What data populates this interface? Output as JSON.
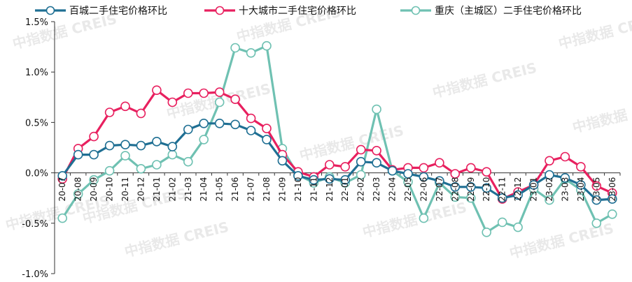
{
  "chart_data": {
    "type": "line",
    "categories": [
      "20-07",
      "20-08",
      "20-09",
      "20-10",
      "20-11",
      "20-12",
      "21-01",
      "21-02",
      "21-03",
      "21-04",
      "21-05",
      "21-06",
      "21-07",
      "21-08",
      "21-09",
      "21-10",
      "21-11",
      "21-12",
      "22-01",
      "22-02",
      "22-03",
      "22-04",
      "22-05",
      "22-06",
      "22-07",
      "22-08",
      "22-09",
      "22-10",
      "22-11",
      "22-12",
      "23-01",
      "23-02",
      "23-03",
      "23-04",
      "23-05",
      "23-06"
    ],
    "series": [
      {
        "name": "百城二手住宅价格环比",
        "color": "#1f6f93",
        "values": [
          -0.03,
          0.18,
          0.18,
          0.27,
          0.28,
          0.27,
          0.31,
          0.26,
          0.43,
          0.49,
          0.49,
          0.48,
          0.42,
          0.33,
          0.12,
          -0.03,
          -0.07,
          -0.06,
          -0.07,
          0.11,
          0.1,
          0.02,
          -0.01,
          -0.04,
          -0.08,
          -0.14,
          -0.14,
          -0.15,
          -0.25,
          -0.22,
          -0.12,
          -0.02,
          -0.05,
          -0.12,
          -0.27,
          -0.26
        ]
      },
      {
        "name": "十大城市二手住宅价格环比",
        "color": "#e8205f",
        "values": [
          -0.06,
          0.24,
          0.36,
          0.6,
          0.66,
          0.59,
          0.82,
          0.7,
          0.79,
          0.79,
          0.8,
          0.73,
          0.54,
          0.44,
          0.18,
          0.01,
          -0.04,
          0.08,
          0.06,
          0.23,
          0.22,
          0.03,
          0.05,
          0.05,
          0.1,
          -0.01,
          0.05,
          0.01,
          -0.26,
          -0.19,
          -0.12,
          0.12,
          0.16,
          0.06,
          -0.13,
          -0.2
        ]
      },
      {
        "name": "重庆（主城区）二手住宅价格环比",
        "color": "#6fc1b2",
        "values": [
          -0.45,
          -0.21,
          -0.07,
          0.02,
          0.17,
          0.04,
          0.08,
          0.18,
          0.11,
          0.33,
          0.7,
          1.24,
          1.19,
          1.26,
          0.24,
          -0.02,
          -0.1,
          -0.04,
          -0.1,
          -0.02,
          0.63,
          0.02,
          -0.09,
          -0.45,
          -0.1,
          -0.24,
          -0.25,
          -0.59,
          -0.49,
          -0.54,
          -0.16,
          -0.27,
          -0.06,
          -0.17,
          -0.5,
          -0.41
        ]
      }
    ],
    "ylim": [
      -1.0,
      1.5
    ],
    "yticks": [
      "-1.0%",
      "-0.5%",
      "0.0%",
      "0.5%",
      "1.0%",
      "1.5%"
    ],
    "ytick_values": [
      -1.0,
      -0.5,
      0.0,
      0.5,
      1.0,
      1.5
    ],
    "grid": false,
    "legend": "top"
  },
  "watermark": "中指数据 CREIS"
}
